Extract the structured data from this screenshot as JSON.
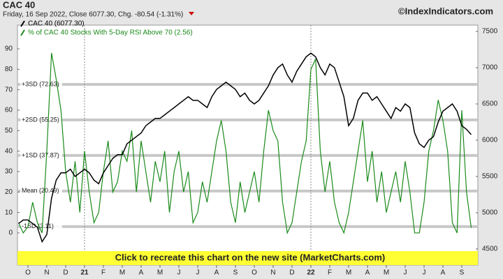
{
  "chart_data": {
    "type": "line",
    "title": "CAC 40",
    "subtitle": "Friday, 16 Sep 2022, Close 6077.30, Chg. -80.54 (-1.31%)",
    "source": "©IndexIndicators.com",
    "banner": "Click to recreate this chart on the new site (MarketCharts.com)",
    "categories": [
      null,
      null,
      "O",
      null,
      null,
      null,
      "N",
      null,
      null,
      null,
      "D",
      null,
      null,
      null,
      "21",
      null,
      null,
      null,
      "F",
      null,
      null,
      null,
      "M",
      null,
      null,
      null,
      "A",
      null,
      null,
      null,
      "M",
      null,
      null,
      null,
      "J",
      null,
      null,
      null,
      "J",
      null,
      null,
      null,
      "A",
      null,
      null,
      null,
      "S",
      null,
      null,
      null,
      "O",
      null,
      null,
      null,
      "N",
      null,
      null,
      null,
      "D",
      null,
      null,
      null,
      "22",
      null,
      null,
      null,
      "F",
      null,
      null,
      null,
      "M",
      null,
      null,
      null,
      "A",
      null,
      null,
      null,
      "M",
      null,
      null,
      null,
      "J",
      null,
      null,
      null,
      "J",
      null,
      null,
      null,
      "A",
      null,
      null,
      null,
      "S",
      null,
      null
    ],
    "series": [
      {
        "name": "CAC 40 (6077.30)",
        "color": "#000000",
        "axis": "y2",
        "values": [
          4850,
          4900,
          4900,
          4850,
          4800,
          4600,
          4700,
          5200,
          5450,
          5550,
          5550,
          5600,
          5500,
          5550,
          5600,
          5550,
          5450,
          5400,
          5550,
          5650,
          5750,
          5800,
          5800,
          5950,
          6000,
          6050,
          6100,
          6200,
          6250,
          6300,
          6300,
          6350,
          6400,
          6450,
          6500,
          6550,
          6600,
          6550,
          6550,
          6500,
          6450,
          6600,
          6700,
          6750,
          6800,
          6750,
          6700,
          6600,
          6650,
          6550,
          6500,
          6550,
          6650,
          6750,
          6900,
          7000,
          7050,
          6900,
          6800,
          6950,
          7050,
          7150,
          7200,
          7150,
          7000,
          6900,
          7050,
          7000,
          6800,
          6600,
          6200,
          6300,
          6550,
          6650,
          6650,
          6550,
          6600,
          6500,
          6400,
          6300,
          6450,
          6400,
          6500,
          6450,
          6100,
          5950,
          5900,
          6000,
          6050,
          6250,
          6400,
          6450,
          6500,
          6400,
          6200,
          6150,
          6077.3
        ]
      },
      {
        "name": "% of CAC 40 Stocks With 5-Day RSI Above 70 (2.56)",
        "color": "#1a8a1a",
        "values": [
          5,
          0,
          3,
          15,
          5,
          0,
          40,
          88,
          75,
          60,
          30,
          15,
          35,
          10,
          40,
          20,
          5,
          10,
          30,
          45,
          20,
          25,
          40,
          35,
          50,
          20,
          45,
          30,
          15,
          35,
          25,
          40,
          10,
          30,
          40,
          20,
          30,
          5,
          10,
          25,
          15,
          30,
          45,
          55,
          40,
          15,
          5,
          25,
          10,
          20,
          30,
          15,
          40,
          60,
          50,
          45,
          15,
          0,
          5,
          20,
          35,
          45,
          80,
          85,
          40,
          20,
          35,
          15,
          5,
          0,
          10,
          25,
          40,
          55,
          25,
          40,
          15,
          30,
          10,
          20,
          30,
          15,
          35,
          20,
          0,
          0,
          15,
          40,
          50,
          65,
          55,
          40,
          5,
          0,
          60,
          20,
          2.56
        ]
      }
    ],
    "bands": [
      {
        "label": "+3SD (72.63)",
        "value": 72.63
      },
      {
        "label": "+2SD (55.25)",
        "value": 55.25
      },
      {
        "label": "+1SD (37.87)",
        "value": 37.87
      },
      {
        "label": "Mean (20.49)",
        "value": 20.49
      },
      {
        "label": "-1SD (3.11)",
        "value": 3.11
      }
    ],
    "ylim": [
      -8.2,
      101.6
    ],
    "yticks": [
      0,
      10,
      20,
      30,
      40,
      50,
      60,
      70,
      80,
      90
    ],
    "y2lim": [
      4490,
      7587
    ],
    "y2ticks": [
      4500,
      5000,
      5500,
      6000,
      6500,
      7000,
      7500
    ],
    "year_lines": [
      "21",
      "22"
    ]
  }
}
